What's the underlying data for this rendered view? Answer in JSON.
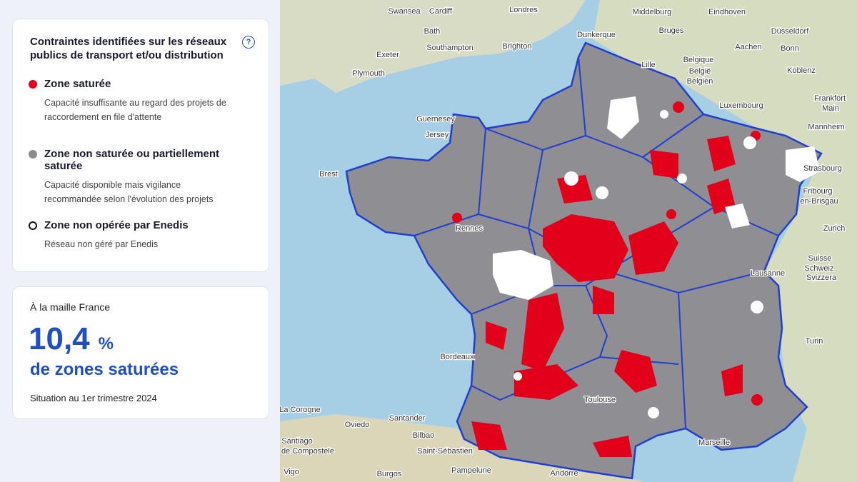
{
  "legend": {
    "title": "Contraintes identifiées sur les réseaux publics de transport et/ou distribution",
    "help": "?",
    "items": [
      {
        "label": "Zone saturée",
        "description": "Capacité insuffisante au regard des projets de raccordement en file d'attente"
      },
      {
        "label": "Zone non saturée ou partiellement saturée",
        "description": "Capacité disponible mais vigilance recommandée selon l'évolution des projets"
      },
      {
        "label": "Zone non opérée par Enedis",
        "description": "Réseau non géré par Enedis"
      }
    ]
  },
  "summary": {
    "intro": "À la maille France",
    "value": "10,4",
    "unit": "%",
    "label": "de zones saturées",
    "note": "Situation au 1er trimestre 2024"
  },
  "map": {
    "labels": [
      "Swansea",
      "Cardiff",
      "Londres",
      "Middelburg",
      "Eindhoven",
      "Bath",
      "Bruges",
      "Dunkerque",
      "Düsseldorf",
      "Exeter",
      "Southampton",
      "Brighton",
      "Aachen",
      "Bonn",
      "Lille",
      "Belgique",
      "België",
      "Belgien",
      "Plymouth",
      "Koblenz",
      "Luxembourg",
      "Frankfort",
      "Main",
      "Guernesey",
      "Jersey",
      "Mannheim",
      "Brest",
      "Strasbourg",
      "Fribourg",
      "en-Brisgau",
      "Rennes",
      "Zurich",
      "Suisse",
      "Schweiz",
      "Svizzera",
      "Lausanne",
      "Bordeaux",
      "Turin",
      "Toulouse",
      "La Corogne",
      "Santander",
      "Oviedo",
      "Bilbao",
      "Santiago",
      "de Compostele",
      "Saint-Sébastien",
      "Marseille",
      "Vigo",
      "Burgos",
      "Pampelune",
      "Andorre"
    ]
  }
}
